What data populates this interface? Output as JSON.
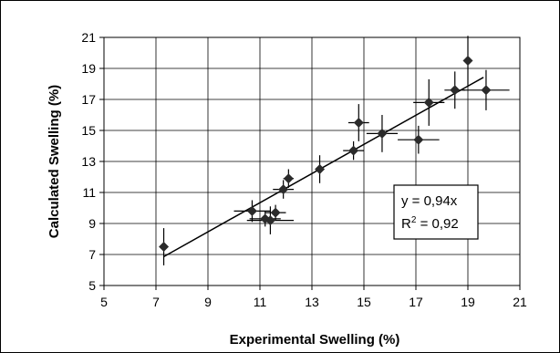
{
  "chart_data": {
    "type": "scatter",
    "xlabel": "Experimental Swelling (%)",
    "ylabel": "Calculated Swelling (%)",
    "xlim": [
      5,
      21
    ],
    "ylim": [
      5,
      21
    ],
    "x_ticks": [
      5,
      7,
      9,
      11,
      13,
      15,
      17,
      19,
      21
    ],
    "y_ticks": [
      5,
      7,
      9,
      11,
      13,
      15,
      17,
      19,
      21
    ],
    "grid": true,
    "marker": "diamond",
    "marker_color": "#2b2b2b",
    "points": [
      {
        "x": 7.3,
        "y": 7.5,
        "xerr": 0.1,
        "yerr": 1.2
      },
      {
        "x": 10.7,
        "y": 9.8,
        "xerr": 0.7,
        "yerr": 0.7
      },
      {
        "x": 11.2,
        "y": 9.3,
        "xerr": 0.6,
        "yerr": 0.5
      },
      {
        "x": 11.4,
        "y": 9.2,
        "xerr": 0.9,
        "yerr": 0.9
      },
      {
        "x": 11.6,
        "y": 9.7,
        "xerr": 0.4,
        "yerr": 0.5
      },
      {
        "x": 11.9,
        "y": 11.2,
        "xerr": 0.4,
        "yerr": 0.6
      },
      {
        "x": 12.1,
        "y": 11.9,
        "xerr": 0.2,
        "yerr": 0.6
      },
      {
        "x": 13.3,
        "y": 12.5,
        "xerr": 0.1,
        "yerr": 0.9
      },
      {
        "x": 14.6,
        "y": 13.7,
        "xerr": 0.4,
        "yerr": 0.6
      },
      {
        "x": 14.8,
        "y": 15.5,
        "xerr": 0.4,
        "yerr": 1.2
      },
      {
        "x": 15.7,
        "y": 14.8,
        "xerr": 0.6,
        "yerr": 1.2
      },
      {
        "x": 17.1,
        "y": 14.4,
        "xerr": 0.8,
        "yerr": 0.9
      },
      {
        "x": 17.5,
        "y": 16.8,
        "xerr": 0.6,
        "yerr": 1.5
      },
      {
        "x": 18.5,
        "y": 17.6,
        "xerr": 0.4,
        "yerr": 1.2
      },
      {
        "x": 19.0,
        "y": 19.5,
        "xerr": 0.1,
        "yerr": 1.6
      },
      {
        "x": 19.7,
        "y": 17.6,
        "xerr": 0.9,
        "yerr": 1.3
      }
    ],
    "trendline": {
      "slope": 0.94,
      "x_range": [
        7.3,
        19.6
      ]
    },
    "annotations": {
      "equation": "y = 0,94x",
      "r_squared_prefix": "R",
      "r_squared_exp": "2",
      "r_squared_suffix": " = 0,92",
      "position": "center-right"
    }
  }
}
